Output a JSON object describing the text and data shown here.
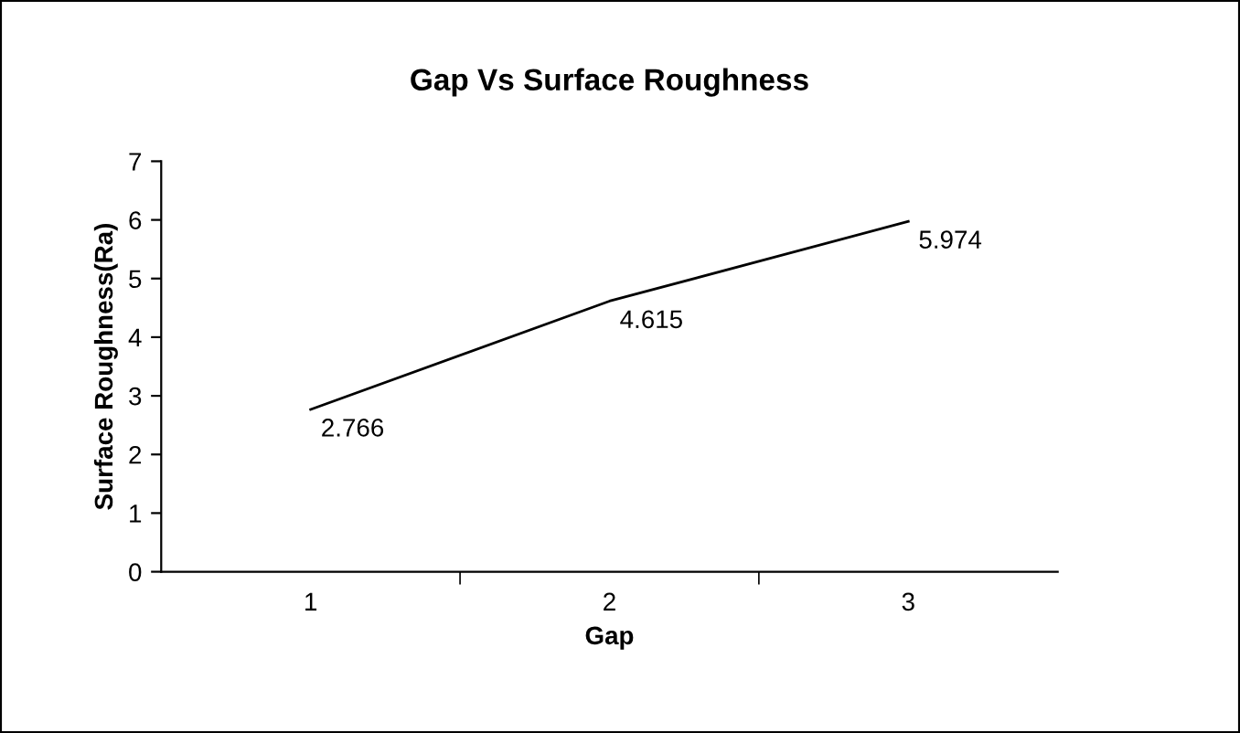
{
  "chart_data": {
    "type": "line",
    "title": "Gap Vs Surface Roughness",
    "xlabel": "Gap",
    "ylabel": "Surface Roughness(Ra)",
    "categories": [
      "1",
      "2",
      "3"
    ],
    "series": [
      {
        "color": "#000000",
        "values": [
          2.766,
          4.615,
          5.974
        ]
      }
    ],
    "ylim": [
      0,
      7
    ],
    "yticks": [
      0,
      1,
      2,
      3,
      4,
      5,
      6,
      7
    ],
    "grid": false,
    "legend": false,
    "marker": "none",
    "line_style": "solid",
    "data_labels": true
  }
}
